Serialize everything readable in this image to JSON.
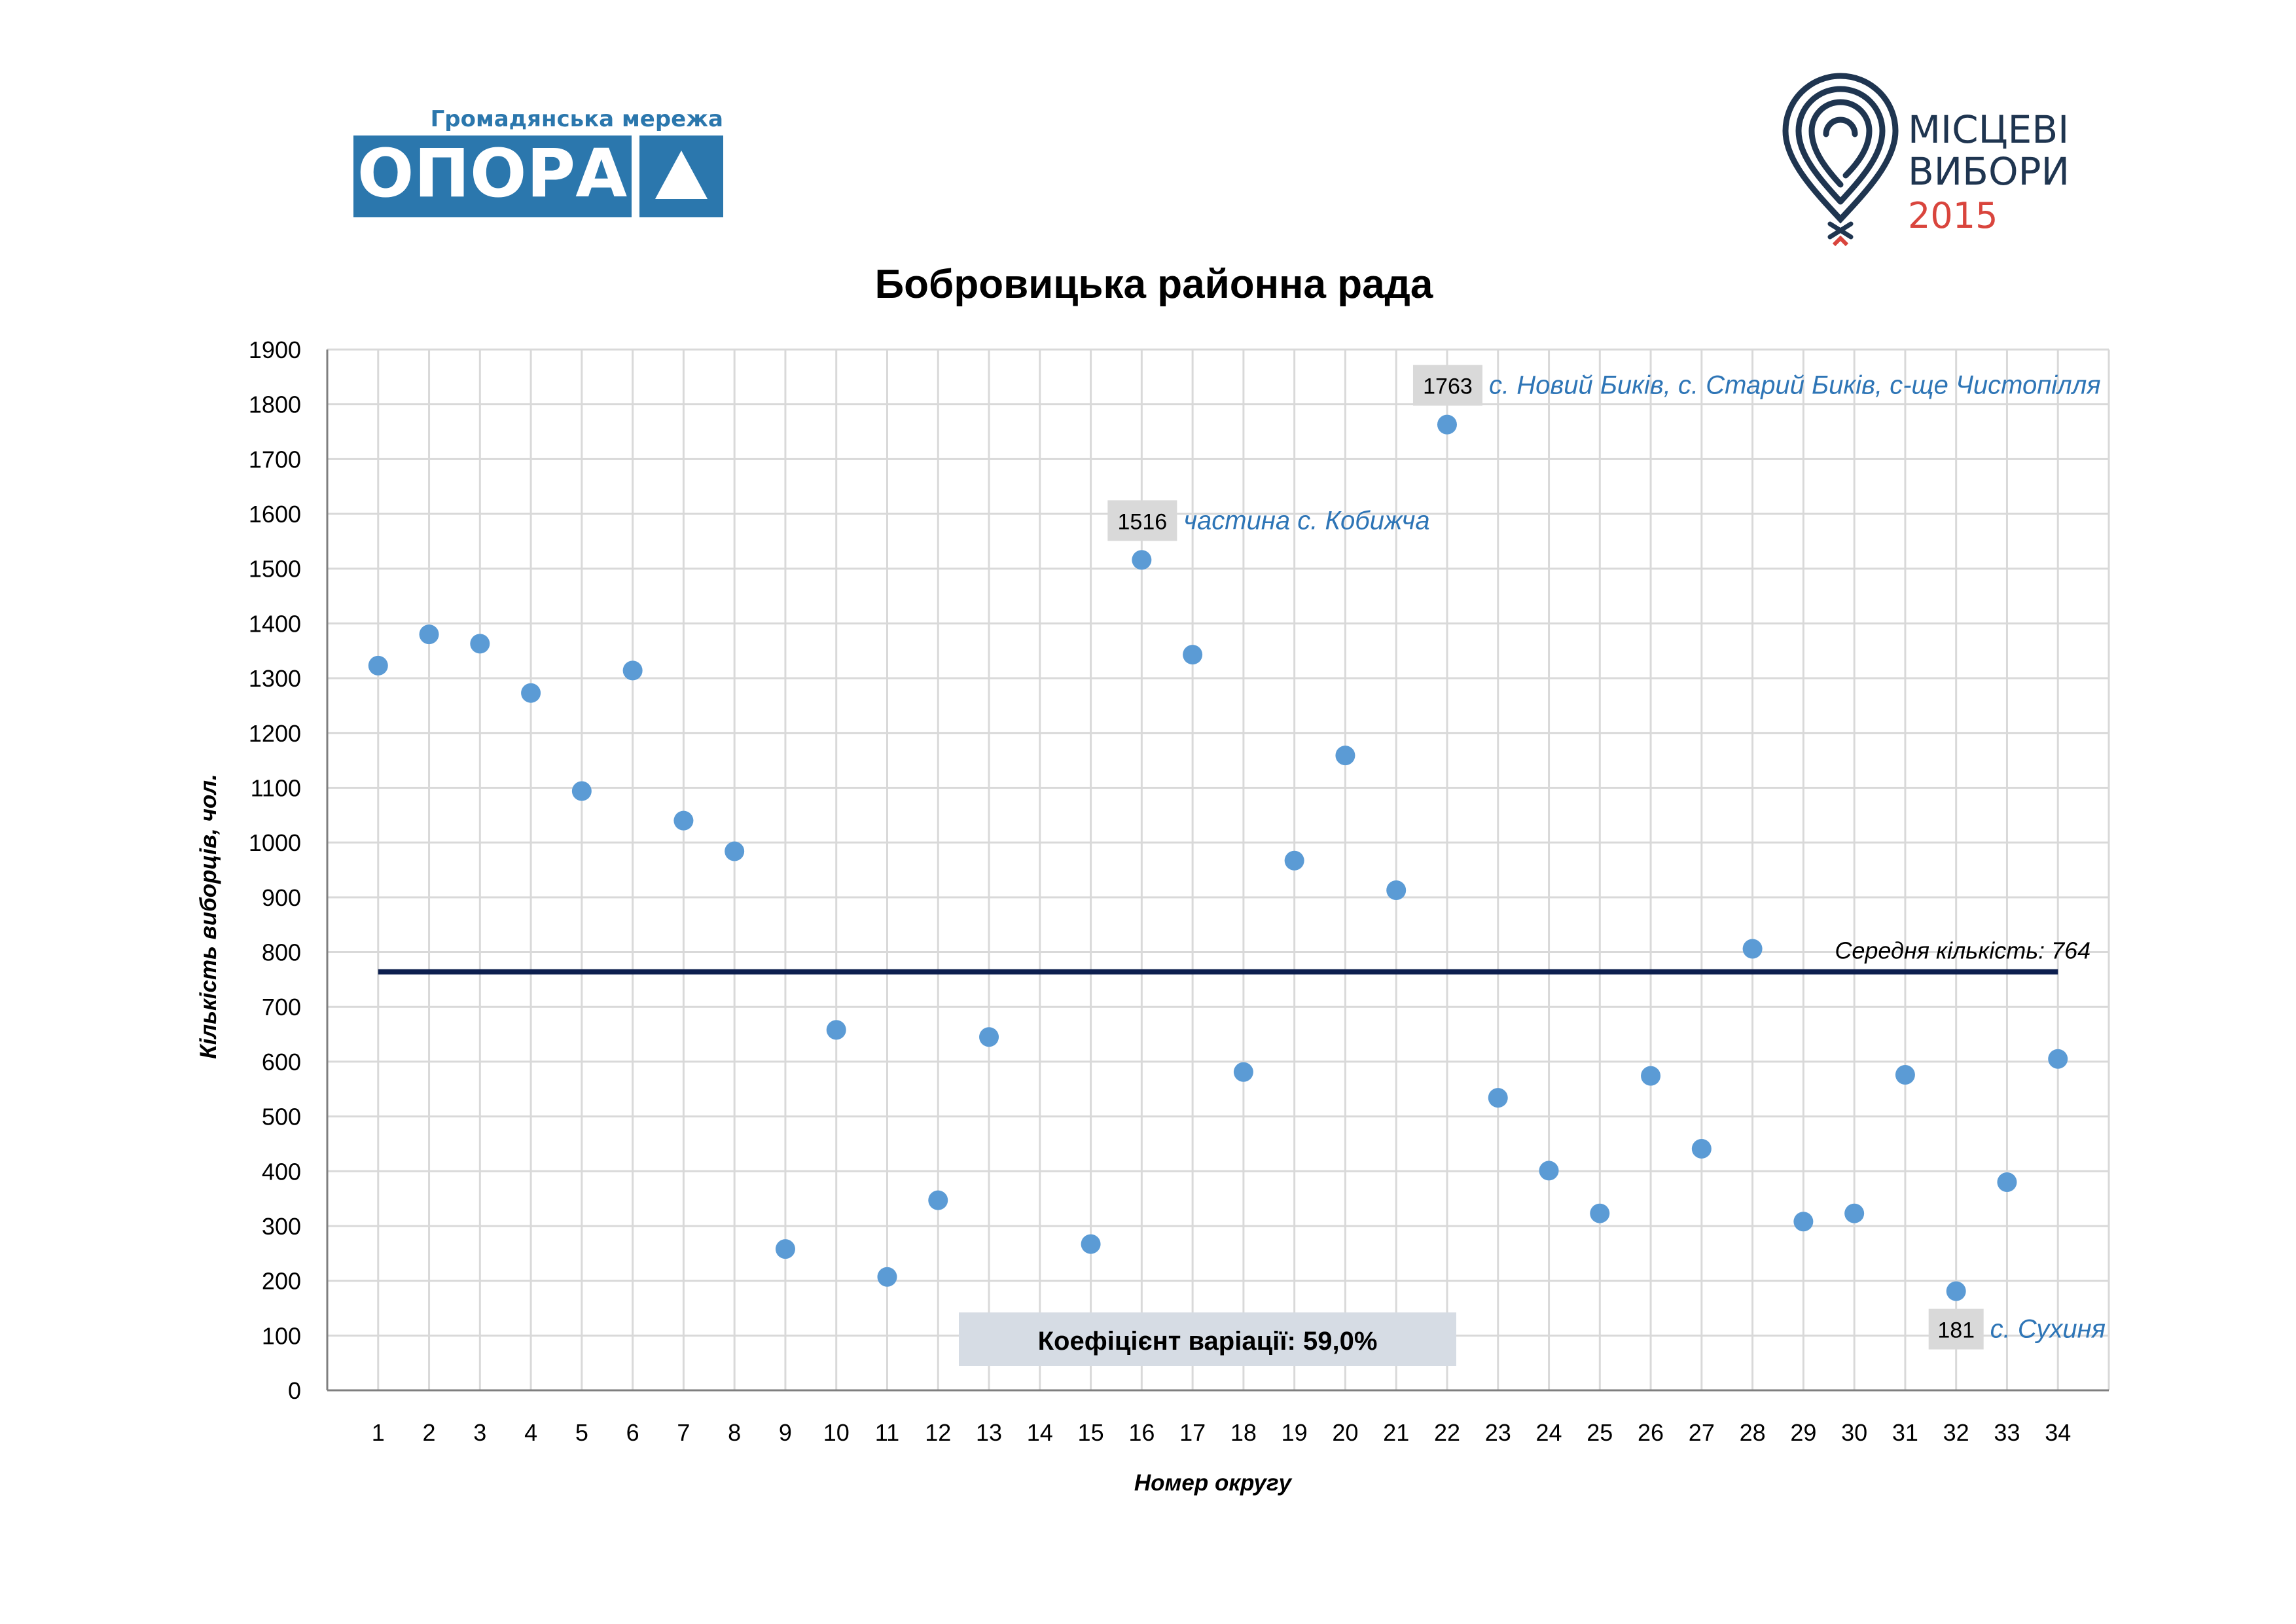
{
  "logos": {
    "opora": {
      "tagline": "Громадянська мережа",
      "name": "ОПОРА",
      "colors": {
        "blue": "#2b77ad",
        "white": "#ffffff"
      }
    },
    "elections": {
      "line1": "МІСЦЕВІ",
      "line2": "ВИБОРИ",
      "year": "2015",
      "colors": {
        "navy": "#1f3550",
        "red": "#d9453d"
      }
    }
  },
  "chart_data": {
    "type": "scatter",
    "title": "Бобровицька районна рада",
    "xlabel": "Номер округу",
    "ylabel": "Кількість виборців, чол.",
    "xlim": [
      0,
      35
    ],
    "ylim": [
      0,
      1900
    ],
    "y_ticks": [
      0,
      100,
      200,
      300,
      400,
      500,
      600,
      700,
      800,
      900,
      1000,
      1100,
      1200,
      1300,
      1400,
      1500,
      1600,
      1700,
      1800,
      1900
    ],
    "x_ticks": [
      1,
      2,
      3,
      4,
      5,
      6,
      7,
      8,
      9,
      10,
      11,
      12,
      13,
      14,
      15,
      16,
      17,
      18,
      19,
      20,
      21,
      22,
      23,
      24,
      25,
      26,
      27,
      28,
      29,
      30,
      31,
      32,
      33,
      34
    ],
    "grid": true,
    "series": [
      {
        "name": "Кількість виборців",
        "color": "#5b9bd5",
        "points": [
          {
            "x": 1,
            "y": 1323
          },
          {
            "x": 2,
            "y": 1380
          },
          {
            "x": 3,
            "y": 1363
          },
          {
            "x": 4,
            "y": 1273
          },
          {
            "x": 5,
            "y": 1094
          },
          {
            "x": 6,
            "y": 1314
          },
          {
            "x": 7,
            "y": 1040
          },
          {
            "x": 8,
            "y": 984
          },
          {
            "x": 9,
            "y": 258
          },
          {
            "x": 10,
            "y": 658
          },
          {
            "x": 11,
            "y": 207
          },
          {
            "x": 12,
            "y": 347
          },
          {
            "x": 13,
            "y": 645
          },
          {
            "x": 15,
            "y": 267
          },
          {
            "x": 16,
            "y": 1516
          },
          {
            "x": 17,
            "y": 1343
          },
          {
            "x": 18,
            "y": 581
          },
          {
            "x": 19,
            "y": 967
          },
          {
            "x": 20,
            "y": 1159
          },
          {
            "x": 21,
            "y": 913
          },
          {
            "x": 22,
            "y": 1763
          },
          {
            "x": 23,
            "y": 534
          },
          {
            "x": 24,
            "y": 401
          },
          {
            "x": 25,
            "y": 323
          },
          {
            "x": 26,
            "y": 574
          },
          {
            "x": 27,
            "y": 441
          },
          {
            "x": 28,
            "y": 806
          },
          {
            "x": 29,
            "y": 308
          },
          {
            "x": 30,
            "y": 323
          },
          {
            "x": 31,
            "y": 576
          },
          {
            "x": 32,
            "y": 181
          },
          {
            "x": 33,
            "y": 380
          },
          {
            "x": 34,
            "y": 605
          }
        ]
      }
    ],
    "mean_line": {
      "value": 764,
      "x_from": 1,
      "x_to": 34,
      "label": "Середня кількість: 764",
      "color": "#0d1f4f"
    },
    "annotations": [
      {
        "x": 22,
        "y": 1763,
        "value_label": "1763",
        "text": "с. Новий Биків, с. Старий Биків, с-ще Чистопілля"
      },
      {
        "x": 16,
        "y": 1516,
        "value_label": "1516",
        "text": "частина с. Кобижча"
      },
      {
        "x": 32,
        "y": 181,
        "value_label": "181",
        "text": "с. Сухиня"
      }
    ],
    "variation_box": {
      "label": "Коефіцієнт варіації:  59,0%"
    },
    "colors": {
      "grid": "#d9d9d9",
      "axis": "#7f7f7f",
      "annotation_text": "#2e75b6",
      "label_box": "#d9d9d9",
      "variation_box": "#d6dce4"
    }
  }
}
